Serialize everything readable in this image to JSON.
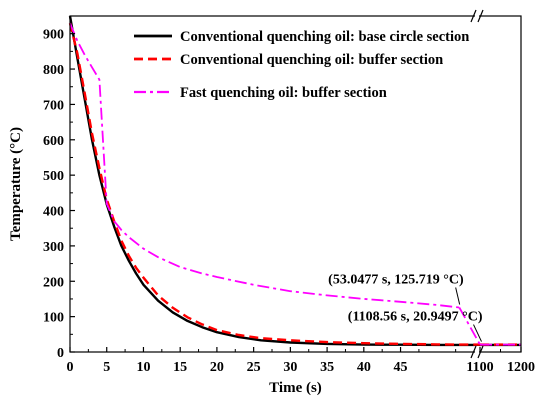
{
  "chart_data": {
    "type": "line",
    "xlabel": "Time (s)",
    "ylabel": "Temperature (°C)",
    "ylim": [
      0,
      950
    ],
    "xlim_segments": [
      [
        0,
        55
      ],
      [
        1100,
        1200
      ]
    ],
    "x_ticks": [
      "0",
      "5",
      "10",
      "15",
      "20",
      "25",
      "30",
      "35",
      "40",
      "45",
      "1100",
      "1200"
    ],
    "y_ticks": [
      "0",
      "100",
      "200",
      "300",
      "400",
      "500",
      "600",
      "700",
      "800",
      "900"
    ],
    "axis_break_between": [
      53,
      1100
    ],
    "legend_position": "top-right",
    "series": [
      {
        "name": "Conventional quenching oil: base circle section",
        "color": "#000000",
        "dash": "solid",
        "x": [
          0,
          1,
          2,
          3,
          4,
          5,
          6,
          7,
          8,
          9,
          10,
          12,
          14,
          16,
          18,
          20,
          23,
          26,
          30,
          35,
          40,
          45,
          50,
          53,
          1100,
          1200
        ],
        "y": [
          950,
          832,
          715,
          600,
          500,
          418,
          355,
          300,
          258,
          222,
          190,
          145,
          112,
          88,
          70,
          56,
          42,
          33,
          27,
          23,
          21,
          20.5,
          20.2,
          20,
          20,
          20
        ]
      },
      {
        "name": "Conventional quenching oil: buffer section",
        "color": "#ff0000",
        "dash": "dashed",
        "x": [
          0,
          1,
          2,
          3,
          4,
          5,
          6,
          7,
          8,
          9,
          10,
          12,
          14,
          16,
          18,
          20,
          23,
          26,
          30,
          35,
          40,
          45,
          50,
          53,
          1100,
          1200
        ],
        "y": [
          930,
          845,
          732,
          618,
          520,
          432,
          370,
          315,
          272,
          238,
          210,
          160,
          125,
          98,
          78,
          62,
          48,
          39,
          33,
          28,
          25,
          23,
          21.5,
          21,
          20.95,
          20.95
        ]
      },
      {
        "name": "Fast quenching oil: buffer section",
        "color": "#ff00ff",
        "dash": "dashdot",
        "x": [
          0,
          1,
          2,
          3,
          4,
          5,
          6,
          7,
          8,
          10,
          12,
          15,
          18,
          20,
          25,
          30,
          35,
          40,
          45,
          50,
          53,
          1100,
          1200
        ],
        "y": [
          930,
          880,
          840,
          805,
          770,
          420,
          370,
          345,
          325,
          292,
          268,
          240,
          222,
          212,
          190,
          172,
          160,
          150,
          142,
          133,
          125.7,
          20.95,
          20.95
        ]
      }
    ],
    "annotations": [
      {
        "text": "(53.0477 s, 125.719 °C)",
        "x": 53.0477,
        "y": 125.719
      },
      {
        "text": "(1108.56 s, 20.9497 °C)",
        "x": 1108.56,
        "y": 20.9497
      }
    ]
  }
}
